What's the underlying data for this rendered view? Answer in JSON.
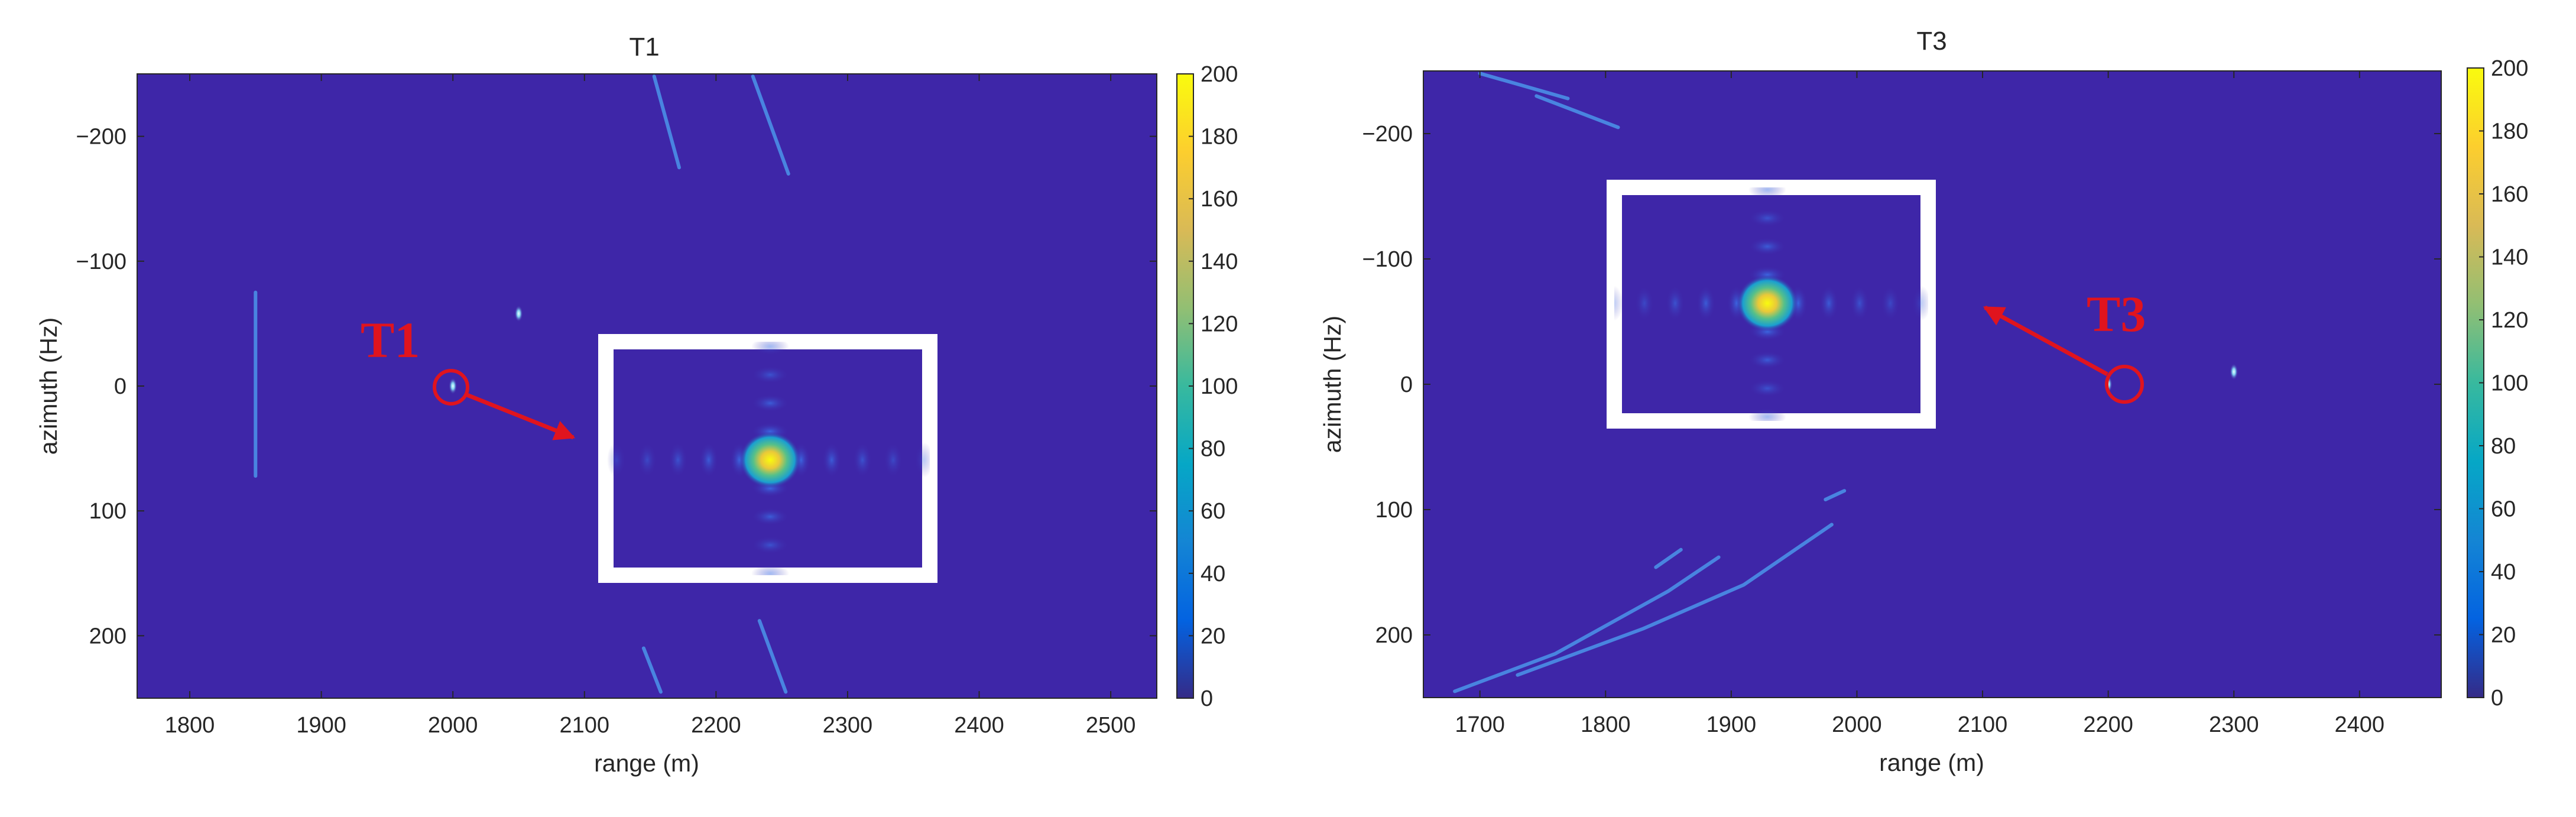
{
  "colors": {
    "background": "#3e26a8",
    "streak": "#4a8fe6",
    "annotation": "#e0141e",
    "inset_frame": "#ffffff"
  },
  "chart_data": [
    {
      "type": "heatmap",
      "title": "T1",
      "xlabel": "range (m)",
      "ylabel": "azimuth (Hz)",
      "xlim": [
        1760,
        2535
      ],
      "ylim": [
        -250,
        250
      ],
      "y_reversed": true,
      "xticks": [
        1800,
        1900,
        2000,
        2100,
        2200,
        2300,
        2400,
        2500
      ],
      "yticks": [
        -200,
        -100,
        0,
        100,
        200
      ],
      "colorbar": {
        "min": 0,
        "max": 200,
        "ticks": [
          0,
          20,
          40,
          60,
          80,
          100,
          120,
          140,
          160,
          180,
          200
        ],
        "colormap": "parula"
      },
      "annotation": {
        "text": "T1",
        "target": [
          2000,
          0
        ]
      },
      "features": {
        "streaks": [
          [
            [
              1850,
              -75
            ],
            [
              1850,
              72
            ]
          ],
          [
            [
              2153,
              -248
            ],
            [
              2172,
              -175
            ]
          ],
          [
            [
              2228,
              -248
            ],
            [
              2255,
              -170
            ]
          ],
          [
            [
              2145,
              210
            ],
            [
              2158,
              245
            ]
          ],
          [
            [
              2233,
              188
            ],
            [
              2253,
              245
            ]
          ]
        ],
        "points": [
          [
            2000,
            0
          ],
          [
            2050,
            -58
          ]
        ]
      }
    },
    {
      "type": "heatmap",
      "title": "T3",
      "xlabel": "range (m)",
      "ylabel": "azimuth (Hz)",
      "xlim": [
        1655,
        2465
      ],
      "ylim": [
        -250,
        250
      ],
      "y_reversed": true,
      "xticks": [
        1700,
        1800,
        1900,
        2000,
        2100,
        2200,
        2300,
        2400
      ],
      "yticks": [
        -200,
        -100,
        0,
        100,
        200
      ],
      "colorbar": {
        "min": 0,
        "max": 200,
        "ticks": [
          0,
          20,
          40,
          60,
          80,
          100,
          120,
          140,
          160,
          180,
          200
        ],
        "colormap": "parula"
      },
      "annotation": {
        "text": "T3",
        "target": [
          2200,
          0
        ]
      },
      "features": {
        "streaks": [
          [
            [
              1700,
              -248
            ],
            [
              1770,
              -228
            ]
          ],
          [
            [
              1745,
              -230
            ],
            [
              1810,
              -205
            ]
          ],
          [
            [
              1680,
              245
            ],
            [
              1760,
              215
            ],
            [
              1850,
              165
            ],
            [
              1890,
              138
            ]
          ],
          [
            [
              1730,
              232
            ],
            [
              1830,
              195
            ],
            [
              1910,
              160
            ],
            [
              1980,
              112
            ]
          ],
          [
            [
              1840,
              146
            ],
            [
              1860,
              132
            ]
          ],
          [
            [
              1975,
              92
            ],
            [
              1990,
              85
            ]
          ]
        ],
        "points": [
          [
            2200,
            0
          ],
          [
            2300,
            -10
          ]
        ]
      }
    }
  ]
}
